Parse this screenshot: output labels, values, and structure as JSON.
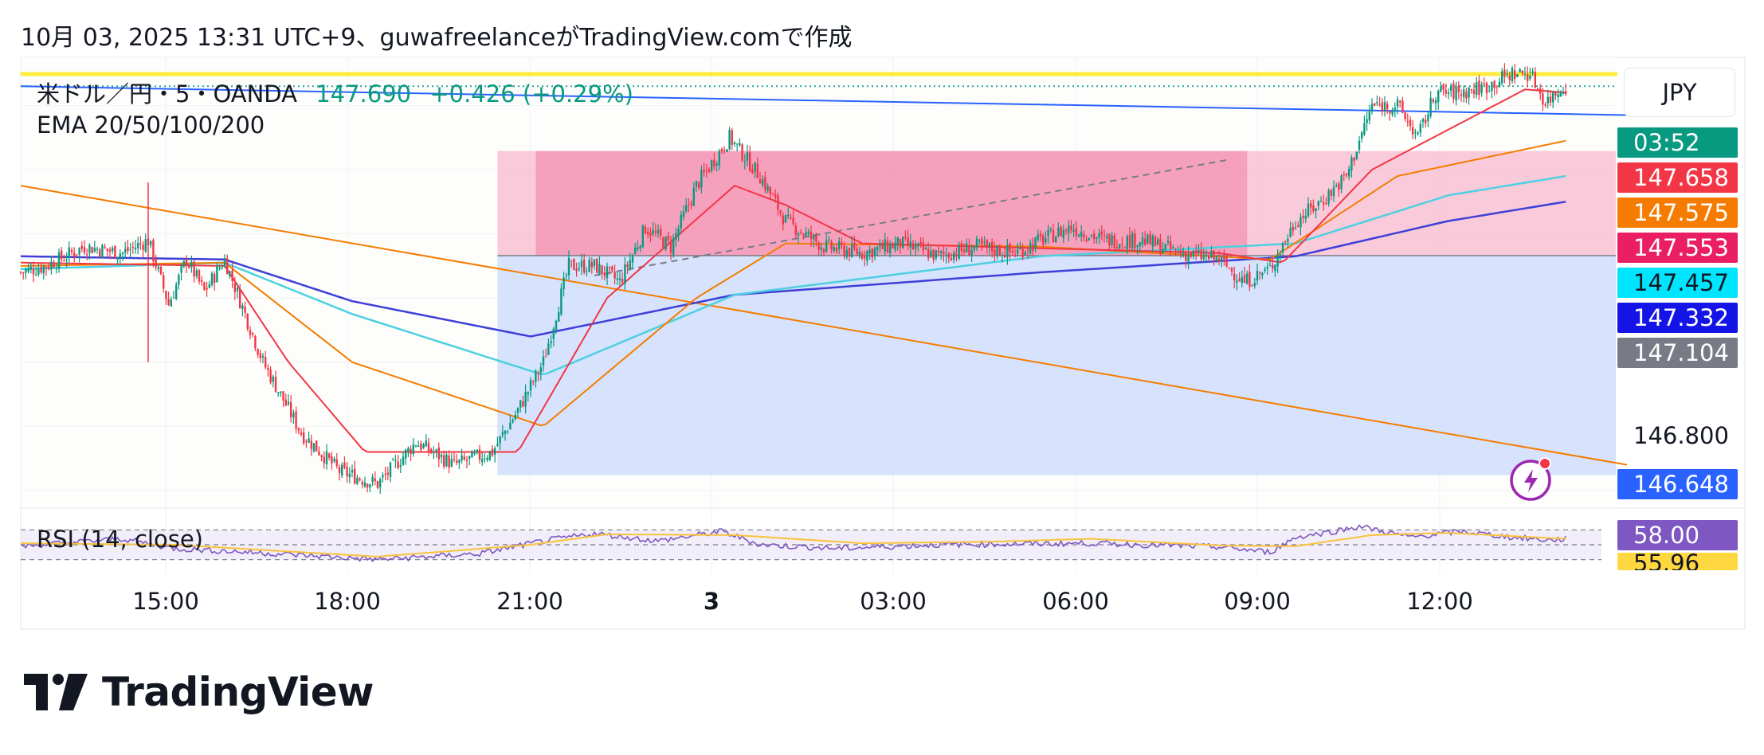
{
  "header": {
    "caption": "10月 03, 2025 13:31 UTC+9、guwafreelanceがTradingView.comで作成"
  },
  "legend": {
    "symbol": "米ドル／円・5・OANDA",
    "price": "147.690",
    "change": "+0.426 (+0.29%)",
    "indicator": "EMA 20/50/100/200"
  },
  "currency_button": "JPY",
  "price_tags": [
    {
      "label": "03:52",
      "color": "#089981"
    },
    {
      "label": "147.658",
      "color": "#f23645"
    },
    {
      "label": "147.575",
      "color": "#f57c00"
    },
    {
      "label": "147.553",
      "color": "#e91e63"
    },
    {
      "label": "147.457",
      "color": "#00e5ff"
    },
    {
      "label": "147.332",
      "color": "#1414e6"
    },
    {
      "label": "147.104",
      "color": "#787b86"
    },
    {
      "label": "146.648",
      "color": "#2962ff"
    }
  ],
  "axis_price_label": "146.800",
  "rsi": {
    "label": "RSI (14, close)",
    "tag_value": "58.00",
    "tag_color": "#7e57c2",
    "tag2_value": "55.96",
    "tag2_color": "#ffd740"
  },
  "footer": {
    "brand": "TradingView"
  },
  "icons": {
    "alert": "lightning-alert-icon",
    "logo": "tradingview-logo-icon"
  },
  "chart_data": {
    "type": "candlestick",
    "symbol": "米ドル／円・5・OANDA",
    "timeframe": "5",
    "x_tick_labels": [
      "15:00",
      "18:00",
      "21:00",
      "3",
      "03:00",
      "06:00",
      "09:00",
      "12:00"
    ],
    "ylim": [
      146.55,
      147.95
    ],
    "rsi_ylim": [
      20,
      80
    ],
    "series_colors": {
      "ema20": "#f23645",
      "ema50": "#f57c00",
      "ema100": "#4dd0e1",
      "ema200": "#3f3fd8",
      "rsi": "#7e57c2",
      "rsi_ma": "#f9c23c",
      "up": "#089981",
      "down": "#f23645"
    },
    "close_anchors": [
      [
        0,
        147.28
      ],
      [
        10,
        147.3
      ],
      [
        25,
        147.36
      ],
      [
        40,
        147.34
      ],
      [
        50,
        147.38
      ],
      [
        58,
        147.18
      ],
      [
        65,
        147.32
      ],
      [
        72,
        147.22
      ],
      [
        80,
        147.32
      ],
      [
        95,
        147.0
      ],
      [
        110,
        146.78
      ],
      [
        125,
        146.66
      ],
      [
        140,
        146.62
      ],
      [
        155,
        146.75
      ],
      [
        170,
        146.68
      ],
      [
        185,
        146.72
      ],
      [
        195,
        146.85
      ],
      [
        205,
        147.0
      ],
      [
        215,
        147.3
      ],
      [
        225,
        147.3
      ],
      [
        235,
        147.25
      ],
      [
        245,
        147.42
      ],
      [
        255,
        147.36
      ],
      [
        265,
        147.55
      ],
      [
        278,
        147.7
      ],
      [
        290,
        147.58
      ],
      [
        300,
        147.44
      ],
      [
        315,
        147.36
      ],
      [
        330,
        147.34
      ],
      [
        345,
        147.37
      ],
      [
        360,
        147.33
      ],
      [
        375,
        147.36
      ],
      [
        390,
        147.34
      ],
      [
        400,
        147.38
      ],
      [
        412,
        147.42
      ],
      [
        425,
        147.38
      ],
      [
        440,
        147.38
      ],
      [
        455,
        147.34
      ],
      [
        470,
        147.32
      ],
      [
        480,
        147.25
      ],
      [
        490,
        147.29
      ],
      [
        500,
        147.44
      ],
      [
        510,
        147.5
      ],
      [
        520,
        147.58
      ],
      [
        530,
        147.8
      ],
      [
        540,
        147.8
      ],
      [
        548,
        147.7
      ],
      [
        555,
        147.84
      ],
      [
        565,
        147.84
      ],
      [
        575,
        147.86
      ],
      [
        585,
        147.9
      ],
      [
        592,
        147.9
      ],
      [
        598,
        147.81
      ],
      [
        605,
        147.86
      ]
    ],
    "ema200_anchors": [
      [
        0,
        147.33
      ],
      [
        80,
        147.32
      ],
      [
        130,
        147.19
      ],
      [
        200,
        147.08
      ],
      [
        280,
        147.21
      ],
      [
        400,
        147.28
      ],
      [
        500,
        147.33
      ],
      [
        560,
        147.44
      ],
      [
        606,
        147.5
      ]
    ],
    "ema100_anchors": [
      [
        0,
        147.29
      ],
      [
        80,
        147.31
      ],
      [
        130,
        147.15
      ],
      [
        205,
        146.96
      ],
      [
        280,
        147.21
      ],
      [
        400,
        147.33
      ],
      [
        500,
        147.37
      ],
      [
        560,
        147.52
      ],
      [
        606,
        147.58
      ]
    ],
    "ema50_anchors": [
      [
        0,
        147.3
      ],
      [
        80,
        147.31
      ],
      [
        130,
        147.0
      ],
      [
        205,
        146.8
      ],
      [
        265,
        147.2
      ],
      [
        300,
        147.37
      ],
      [
        400,
        147.36
      ],
      [
        490,
        147.32
      ],
      [
        540,
        147.58
      ],
      [
        606,
        147.69
      ]
    ],
    "ema20_anchors": [
      [
        0,
        147.31
      ],
      [
        80,
        147.3
      ],
      [
        105,
        147.0
      ],
      [
        135,
        146.72
      ],
      [
        195,
        146.72
      ],
      [
        230,
        147.2
      ],
      [
        280,
        147.55
      ],
      [
        300,
        147.49
      ],
      [
        330,
        147.37
      ],
      [
        470,
        147.34
      ],
      [
        495,
        147.31
      ],
      [
        530,
        147.6
      ],
      [
        590,
        147.85
      ],
      [
        606,
        147.84
      ]
    ],
    "rsi_anchors": [
      [
        0,
        48
      ],
      [
        40,
        58
      ],
      [
        60,
        45
      ],
      [
        100,
        38
      ],
      [
        140,
        30
      ],
      [
        180,
        38
      ],
      [
        205,
        55
      ],
      [
        225,
        65
      ],
      [
        250,
        55
      ],
      [
        275,
        68
      ],
      [
        290,
        50
      ],
      [
        320,
        45
      ],
      [
        360,
        50
      ],
      [
        420,
        52
      ],
      [
        470,
        47
      ],
      [
        490,
        40
      ],
      [
        500,
        60
      ],
      [
        515,
        68
      ],
      [
        525,
        75
      ],
      [
        545,
        60
      ],
      [
        565,
        68
      ],
      [
        585,
        60
      ],
      [
        600,
        56
      ],
      [
        606,
        58
      ]
    ],
    "rsi_ma_anchors": [
      [
        0,
        52
      ],
      [
        60,
        50
      ],
      [
        140,
        34
      ],
      [
        200,
        50
      ],
      [
        230,
        64
      ],
      [
        280,
        63
      ],
      [
        330,
        52
      ],
      [
        380,
        54
      ],
      [
        420,
        58
      ],
      [
        470,
        49
      ],
      [
        500,
        48
      ],
      [
        530,
        63
      ],
      [
        560,
        66
      ],
      [
        606,
        58
      ]
    ],
    "trendlines": [
      {
        "name": "downtrend-orange",
        "color": "#f57c00",
        "from": [
          0,
          147.55
        ],
        "to": [
          630,
          146.68
        ]
      },
      {
        "name": "resistance-blue",
        "color": "#2962ff",
        "from": [
          0,
          147.86
        ],
        "to": [
          630,
          147.77
        ]
      }
    ],
    "horizontal_lines": [
      {
        "name": "resistance-yellow",
        "color": "#ffeb3b",
        "price": 147.898
      },
      {
        "name": "last-price-dotted",
        "color": "#26a69a",
        "price": 147.86
      }
    ],
    "position": {
      "type": "long",
      "entry": 147.332,
      "target": 147.658,
      "stop": 146.648,
      "start_index": 187,
      "end_index": 630,
      "profit_zone_color": "#f48fb1",
      "loss_zone_color": "#d0ddfc"
    },
    "fib_rect": {
      "color": "#f06292",
      "from_index": 202,
      "to_index": 481,
      "top": 147.658,
      "bottom": 147.332
    }
  }
}
